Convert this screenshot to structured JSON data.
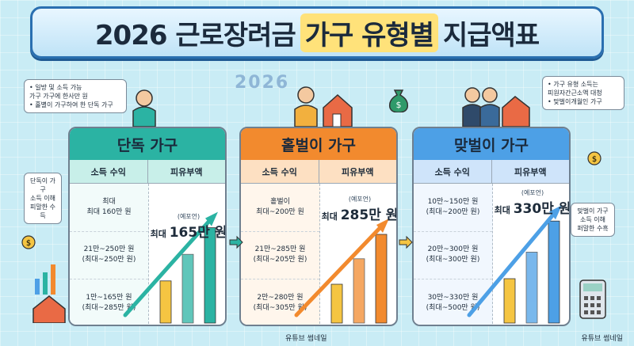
{
  "title": {
    "part1": "2026 근로장려금",
    "part2": "가구 유형별",
    "part3": "지급액표"
  },
  "year_mark": "2026",
  "notes": {
    "left": [
      "• 일방 및 소득 가능",
      "가구 가구에 한사만 원",
      "• 홀별이 가구하여 한 단독 가구"
    ],
    "right": [
      "• 가구 유형 소득는",
      "피원자간근소액 대청",
      "• 맞벌이개월인 가구"
    ]
  },
  "side_tags": {
    "left": [
      "단독이 가구",
      "소득 이해",
      "피말한 수득"
    ],
    "right": [
      "맞벌이 가구",
      "소득 이해",
      "퍼말한 수흑"
    ]
  },
  "panels": [
    {
      "title": "단독 가구",
      "col_income": "소득 수익",
      "col_amount": "피유부액",
      "rows": [
        [
          "최대",
          "최대 160만 원"
        ],
        [
          "21만~250만 원",
          "(최대~250만 원)"
        ],
        [
          "1만~165만 원",
          "(최대~285만 원)"
        ]
      ],
      "amount_note": "(예포언)",
      "amount_prefix": "최대",
      "amount_value": "165만 원",
      "bar_levels": [
        0.38,
        0.62,
        0.86
      ],
      "color": "#2bb3a3"
    },
    {
      "title": "홑벌이 가구",
      "col_income": "소득 수익",
      "col_amount": "피유부액",
      "rows": [
        [
          "홑벌이",
          "최대~200만 원"
        ],
        [
          "21만~285만 원",
          "(최대~205만 원)"
        ],
        [
          "2만~280만 원",
          "(최대~305만 원)"
        ]
      ],
      "amount_note": "(예포언)",
      "amount_prefix": "최대",
      "amount_value": "285만 원",
      "bar_levels": [
        0.35,
        0.58,
        0.8
      ],
      "color": "#f28a2e"
    },
    {
      "title": "맞벌이 가구",
      "col_income": "소득 수익",
      "col_amount": "피유부액",
      "rows": [
        [
          "10만~150만 원",
          "(최대~200만 원)"
        ],
        [
          "20만~300만 원",
          "(최대~300만 원)"
        ],
        [
          "30만~330만 원",
          "(최대~500만 원)"
        ]
      ],
      "amount_note": "(예포언)",
      "amount_prefix": "최대",
      "amount_value": "330만 원",
      "bar_levels": [
        0.4,
        0.64,
        0.92
      ],
      "color": "#4da0e6"
    }
  ],
  "footer": {
    "center": "유튜브 썸네일",
    "right": "유튜브 썸네일"
  }
}
